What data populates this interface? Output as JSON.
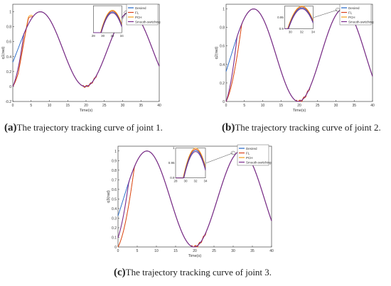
{
  "captions": [
    {
      "letter": "(a)",
      "text": "The trajectory tracking curve of joint 1."
    },
    {
      "letter": "(b)",
      "text": "The trajectory tracking curve of joint 2."
    },
    {
      "letter": "(c)",
      "text": "The trajectory tracking curve of joint 3."
    }
  ],
  "chart_data": [
    {
      "type": "line",
      "xlabel": "Time(s)",
      "ylabel": "q1(rad)",
      "xlim": [
        0,
        40
      ],
      "ylim": [
        -0.2,
        1.1
      ],
      "xticks": [
        "0",
        "5",
        "10",
        "15",
        "20",
        "25",
        "30",
        "35",
        "40"
      ],
      "yticks": [
        "-0.2",
        "0",
        "0.2",
        "0.4",
        "0.6",
        "0.8",
        "1"
      ],
      "legend": [
        "Desired",
        "FL",
        "PCH",
        "Smooth-switching"
      ],
      "legend_position": "top-right",
      "inset": {
        "xlim": [
          28,
          34
        ],
        "ylim": [
          0.9,
          1.02
        ],
        "xticks": [
          "28",
          "30",
          "32",
          "34"
        ],
        "yticks": []
      }
    },
    {
      "type": "line",
      "xlabel": "Time(s)",
      "ylabel": "q2(rad)",
      "xlim": [
        0,
        40
      ],
      "ylim": [
        0,
        1.05
      ],
      "xticks": [
        "0",
        "5",
        "10",
        "15",
        "20",
        "25",
        "30",
        "35",
        "40"
      ],
      "yticks": [
        "0",
        "0.2",
        "0.4",
        "0.6",
        "0.8",
        "1"
      ],
      "legend": [
        "Desired",
        "FL",
        "PCH",
        "Smooth-switching"
      ],
      "legend_position": "top-right",
      "inset": {
        "xlim": [
          29,
          34
        ],
        "ylim": [
          0.9,
          1.0
        ],
        "xticks": [
          "30",
          "32",
          "34"
        ],
        "yticks": [
          "0.9",
          "0.95"
        ]
      }
    },
    {
      "type": "line",
      "xlabel": "Time(s)",
      "ylabel": "q3(rad)",
      "xlim": [
        0,
        40
      ],
      "ylim": [
        0,
        1.05
      ],
      "xticks": [
        "0",
        "5",
        "10",
        "15",
        "20",
        "25",
        "30",
        "35",
        "40"
      ],
      "yticks": [
        "0",
        "0.1",
        "0.2",
        "0.3",
        "0.4",
        "0.5",
        "0.6",
        "0.7",
        "0.8",
        "0.9",
        "1"
      ],
      "legend": [
        "Desired",
        "FL",
        "PCH",
        "Smooth-switching"
      ],
      "legend_position": "top-right",
      "inset": {
        "xlim": [
          28,
          34
        ],
        "ylim": [
          0.9,
          1.0
        ],
        "xticks": [
          "28",
          "30",
          "32",
          "34"
        ],
        "yticks": [
          "0.9",
          "0.95",
          "1"
        ]
      }
    }
  ],
  "colors": {
    "Desired": "#1f63c6",
    "FL": "#d9401a",
    "PCH": "#f2a01c",
    "Smooth-switching": "#7a2a8c"
  }
}
